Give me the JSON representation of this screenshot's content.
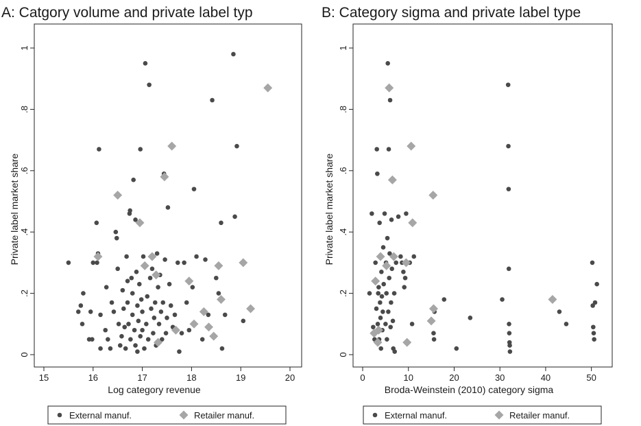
{
  "colors": {
    "external": "#4a4a4a",
    "retailer": "#a6a6a6",
    "frame": "#222222"
  },
  "chart_data": [
    {
      "type": "scatter",
      "title": "A: Catgory volume and private label typ",
      "xlabel": "Log category revenue",
      "ylabel": "Private label market share",
      "xlim": [
        15,
        20
      ],
      "ylim": [
        0,
        1
      ],
      "xticks": [
        "15",
        "16",
        "17",
        "18",
        "19",
        "20"
      ],
      "yticks": [
        "0",
        ".2",
        ".4",
        ".6",
        ".8",
        "1"
      ],
      "grid": false,
      "legend_position": "bottom",
      "series": [
        {
          "name": "External manuf.",
          "marker": "circle",
          "points": [
            [
              15.5,
              0.3
            ],
            [
              15.8,
              0.2
            ],
            [
              15.75,
              0.16
            ],
            [
              15.7,
              0.14
            ],
            [
              15.78,
              0.1
            ],
            [
              15.95,
              0.14
            ],
            [
              15.92,
              0.05
            ],
            [
              15.98,
              0.05
            ],
            [
              16.0,
              0.3
            ],
            [
              16.08,
              0.3
            ],
            [
              16.1,
              0.33
            ],
            [
              16.07,
              0.43
            ],
            [
              16.12,
              0.67
            ],
            [
              16.15,
              0.13
            ],
            [
              16.15,
              0.02
            ],
            [
              16.25,
              0.08
            ],
            [
              16.27,
              0.22
            ],
            [
              16.3,
              0.05
            ],
            [
              16.35,
              0.02
            ],
            [
              16.38,
              0.17
            ],
            [
              16.42,
              0.14
            ],
            [
              16.46,
              0.4
            ],
            [
              16.48,
              0.38
            ],
            [
              16.5,
              0.28
            ],
            [
              16.52,
              0.1
            ],
            [
              16.55,
              0.03
            ],
            [
              16.58,
              0.06
            ],
            [
              16.6,
              0.21
            ],
            [
              16.62,
              0.15
            ],
            [
              16.64,
              0.09
            ],
            [
              16.66,
              0.02
            ],
            [
              16.68,
              0.32
            ],
            [
              16.7,
              0.24
            ],
            [
              16.7,
              0.17
            ],
            [
              16.72,
              0.1
            ],
            [
              16.74,
              0.46
            ],
            [
              16.75,
              0.47
            ],
            [
              16.76,
              0.05
            ],
            [
              16.78,
              0.25
            ],
            [
              16.8,
              0.2
            ],
            [
              16.8,
              0.13
            ],
            [
              16.82,
              0.57
            ],
            [
              16.84,
              0.08
            ],
            [
              16.86,
              0.03
            ],
            [
              16.86,
              0.44
            ],
            [
              16.88,
              0.27
            ],
            [
              16.9,
              0.16
            ],
            [
              16.9,
              0.01
            ],
            [
              16.92,
              0.11
            ],
            [
              16.94,
              0.23
            ],
            [
              16.96,
              0.67
            ],
            [
              16.96,
              0.06
            ],
            [
              16.98,
              0.18
            ],
            [
              17.0,
              0.14
            ],
            [
              17.0,
              0.08
            ],
            [
              17.02,
              0.32
            ],
            [
              17.04,
              0.02
            ],
            [
              17.06,
              0.95
            ],
            [
              17.08,
              0.1
            ],
            [
              17.1,
              0.19
            ],
            [
              17.12,
              0.05
            ],
            [
              17.14,
              0.88
            ],
            [
              17.16,
              0.25
            ],
            [
              17.18,
              0.15
            ],
            [
              17.2,
              0.28
            ],
            [
              17.22,
              0.07
            ],
            [
              17.24,
              0.12
            ],
            [
              17.26,
              0.17
            ],
            [
              17.28,
              0.03
            ],
            [
              17.3,
              0.33
            ],
            [
              17.32,
              0.22
            ],
            [
              17.34,
              0.1
            ],
            [
              17.36,
              0.26
            ],
            [
              17.38,
              0.14
            ],
            [
              17.4,
              0.05
            ],
            [
              17.42,
              0.17
            ],
            [
              17.44,
              0.59
            ],
            [
              17.46,
              0.31
            ],
            [
              17.48,
              0.07
            ],
            [
              17.5,
              0.12
            ],
            [
              17.52,
              0.48
            ],
            [
              17.55,
              0.23
            ],
            [
              17.58,
              0.16
            ],
            [
              17.62,
              0.09
            ],
            [
              17.66,
              0.13
            ],
            [
              17.72,
              0.3
            ],
            [
              17.75,
              0.01
            ],
            [
              17.8,
              0.07
            ],
            [
              17.85,
              0.3
            ],
            [
              17.9,
              0.17
            ],
            [
              17.95,
              0.08
            ],
            [
              18.02,
              0.22
            ],
            [
              18.05,
              0.54
            ],
            [
              18.1,
              0.32
            ],
            [
              18.22,
              0.05
            ],
            [
              18.28,
              0.31
            ],
            [
              18.34,
              0.13
            ],
            [
              18.42,
              0.83
            ],
            [
              18.5,
              0.25
            ],
            [
              18.55,
              0.2
            ],
            [
              18.6,
              0.43
            ],
            [
              18.62,
              0.02
            ],
            [
              18.68,
              0.13
            ],
            [
              18.85,
              0.98
            ],
            [
              18.88,
              0.45
            ],
            [
              18.92,
              0.68
            ],
            [
              19.05,
              0.11
            ]
          ]
        },
        {
          "name": "Retailer manuf.",
          "marker": "diamond",
          "points": [
            [
              16.1,
              0.32
            ],
            [
              16.5,
              0.52
            ],
            [
              16.95,
              0.43
            ],
            [
              17.05,
              0.29
            ],
            [
              17.2,
              0.32
            ],
            [
              17.28,
              0.26
            ],
            [
              17.32,
              0.04
            ],
            [
              17.45,
              0.58
            ],
            [
              17.6,
              0.68
            ],
            [
              17.68,
              0.08
            ],
            [
              17.95,
              0.24
            ],
            [
              18.05,
              0.1
            ],
            [
              18.25,
              0.14
            ],
            [
              18.35,
              0.09
            ],
            [
              18.45,
              0.06
            ],
            [
              18.55,
              0.29
            ],
            [
              18.6,
              0.18
            ],
            [
              19.05,
              0.3
            ],
            [
              19.2,
              0.15
            ],
            [
              19.55,
              0.87
            ]
          ]
        }
      ]
    },
    {
      "type": "scatter",
      "title": "B: Category sigma and private label type",
      "xlabel": "Broda-Weinstein (2010) category sigma",
      "ylabel": "Private label market share",
      "xlim": [
        0,
        52
      ],
      "ylim": [
        0,
        1
      ],
      "xticks": [
        "0",
        "10",
        "20",
        "30",
        "40",
        "50"
      ],
      "yticks": [
        "0",
        ".2",
        ".4",
        ".6",
        ".8",
        "1"
      ],
      "grid": false,
      "legend_position": "bottom",
      "series": [
        {
          "name": "External manuf.",
          "marker": "circle",
          "points": [
            [
              1.5,
              0.2
            ],
            [
              2.0,
              0.46
            ],
            [
              2.3,
              0.09
            ],
            [
              2.6,
              0.05
            ],
            [
              2.8,
              0.3
            ],
            [
              3.0,
              0.15
            ],
            [
              3.1,
              0.67
            ],
            [
              3.2,
              0.59
            ],
            [
              3.3,
              0.1
            ],
            [
              3.4,
              0.2
            ],
            [
              3.5,
              0.22
            ],
            [
              3.6,
              0.05
            ],
            [
              3.7,
              0.43
            ],
            [
              3.8,
              0.17
            ],
            [
              3.9,
              0.12
            ],
            [
              4.0,
              0.02
            ],
            [
              4.1,
              0.27
            ],
            [
              4.2,
              0.19
            ],
            [
              4.3,
              0.08
            ],
            [
              4.4,
              0.14
            ],
            [
              4.5,
              0.35
            ],
            [
              4.6,
              0.23
            ],
            [
              4.8,
              0.46
            ],
            [
              5.0,
              0.1
            ],
            [
              5.1,
              0.3
            ],
            [
              5.2,
              0.2
            ],
            [
              5.3,
              0.05
            ],
            [
              5.4,
              0.38
            ],
            [
              5.5,
              0.95
            ],
            [
              5.6,
              0.14
            ],
            [
              5.7,
              0.67
            ],
            [
              5.8,
              0.25
            ],
            [
              5.9,
              0.33
            ],
            [
              6.0,
              0.83
            ],
            [
              6.1,
              0.09
            ],
            [
              6.2,
              0.17
            ],
            [
              6.3,
              0.44
            ],
            [
              6.4,
              0.28
            ],
            [
              6.5,
              0.57
            ],
            [
              6.6,
              0.11
            ],
            [
              6.7,
              0.02
            ],
            [
              6.9,
              0.2
            ],
            [
              7.0,
              0.01
            ],
            [
              7.3,
              0.3
            ],
            [
              7.8,
              0.45
            ],
            [
              8.3,
              0.32
            ],
            [
              8.6,
              0.3
            ],
            [
              8.9,
              0.27
            ],
            [
              9.1,
              0.22
            ],
            [
              9.3,
              0.25
            ],
            [
              9.5,
              0.46
            ],
            [
              10.3,
              0.3
            ],
            [
              10.8,
              0.1
            ],
            [
              11.2,
              0.32
            ],
            [
              15.5,
              0.07
            ],
            [
              15.6,
              0.05
            ],
            [
              15.7,
              0.14
            ],
            [
              17.8,
              0.18
            ],
            [
              20.5,
              0.02
            ],
            [
              23.5,
              0.12
            ],
            [
              30.5,
              0.18
            ],
            [
              31.8,
              0.88
            ],
            [
              31.85,
              0.68
            ],
            [
              31.9,
              0.54
            ],
            [
              31.95,
              0.28
            ],
            [
              32.0,
              0.1
            ],
            [
              32.05,
              0.07
            ],
            [
              32.1,
              0.04
            ],
            [
              32.15,
              0.03
            ],
            [
              32.2,
              0.01
            ],
            [
              43.0,
              0.14
            ],
            [
              44.5,
              0.1
            ],
            [
              50.2,
              0.3
            ],
            [
              50.3,
              0.16
            ],
            [
              50.4,
              0.09
            ],
            [
              50.5,
              0.07
            ],
            [
              50.6,
              0.05
            ],
            [
              50.8,
              0.17
            ],
            [
              51.2,
              0.23
            ]
          ]
        },
        {
          "name": "Retailer manuf.",
          "marker": "diamond",
          "points": [
            [
              2.5,
              0.07
            ],
            [
              2.8,
              0.24
            ],
            [
              3.3,
              0.04
            ],
            [
              3.5,
              0.08
            ],
            [
              3.9,
              0.32
            ],
            [
              5.2,
              0.29
            ],
            [
              5.8,
              0.87
            ],
            [
              6.5,
              0.57
            ],
            [
              6.8,
              0.32
            ],
            [
              9.5,
              0.3
            ],
            [
              9.7,
              0.04
            ],
            [
              10.6,
              0.68
            ],
            [
              10.9,
              0.43
            ],
            [
              15.0,
              0.11
            ],
            [
              15.4,
              0.52
            ],
            [
              15.5,
              0.15
            ],
            [
              41.5,
              0.18
            ]
          ]
        }
      ]
    }
  ]
}
